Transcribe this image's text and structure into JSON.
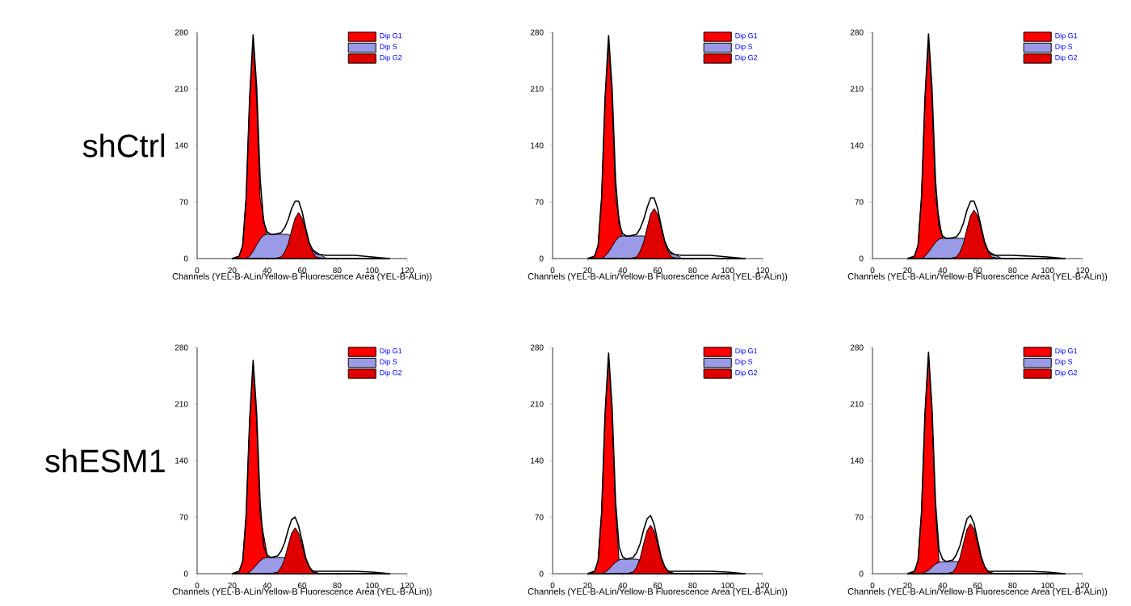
{
  "chart_data": [
    {
      "type": "area",
      "annotations": [
        "shCtrl"
      ],
      "xlabel": "Channels (YEL-B-ALin/Yellow-B Fluorescence Area (YEL-B-ALin))",
      "xlim": [
        0,
        120
      ],
      "xticks": [
        0,
        20,
        40,
        60,
        80,
        100,
        120
      ],
      "ylim": [
        0,
        280
      ],
      "yticks": [
        0,
        70,
        140,
        210,
        280
      ],
      "legend": "top right",
      "x": [
        20,
        24,
        26,
        28,
        30,
        32,
        34,
        36,
        38,
        40,
        42,
        44,
        46,
        48,
        50,
        52,
        54,
        56,
        58,
        60,
        62,
        64,
        66,
        68,
        70,
        74,
        80,
        90,
        100,
        110
      ],
      "series": [
        {
          "name": "Dip G1",
          "color": "#ff0000",
          "values": [
            0,
            3,
            16,
            75,
            196,
            268,
            196,
            75,
            null,
            null,
            0,
            0,
            0,
            0,
            0,
            0,
            0,
            0,
            0,
            0,
            0,
            0,
            0,
            0,
            0,
            0,
            0,
            0,
            0,
            0
          ]
        },
        {
          "name": "Dip S",
          "color": "#9a9ae6",
          "values": [
            0,
            0,
            0,
            0,
            3,
            9,
            17,
            24,
            29,
            30,
            30,
            30,
            30,
            30,
            30,
            30,
            null,
            null,
            null,
            null,
            null,
            null,
            null,
            null,
            null,
            0,
            0,
            0,
            0,
            0
          ]
        },
        {
          "name": "Dip G2",
          "color": "#e00000",
          "values": [
            0,
            0,
            0,
            0,
            0,
            0,
            0,
            0,
            0,
            0,
            0,
            0,
            1,
            2,
            8,
            18,
            35,
            50,
            57,
            50,
            35,
            18,
            8,
            2,
            1,
            0,
            0,
            0,
            0,
            0
          ]
        },
        {
          "type": "line",
          "color": "#000000",
          "values": [
            0,
            3,
            16,
            75,
            199,
            277,
            213,
            99,
            45,
            33,
            30,
            30,
            31,
            32,
            38,
            48,
            62,
            71,
            71,
            58,
            38,
            20,
            11,
            6,
            5,
            4,
            4,
            4,
            2,
            0
          ]
        }
      ]
    },
    {
      "type": "area",
      "xlabel": "Channels (YEL-B-ALin/Yellow-B Fluorescence Area (YEL-B-ALin))",
      "xlim": [
        0,
        120
      ],
      "xticks": [
        0,
        20,
        40,
        60,
        80,
        100,
        120
      ],
      "ylim": [
        0,
        280
      ],
      "yticks": [
        0,
        70,
        140,
        210,
        280
      ],
      "legend": "top right",
      "x": [
        20,
        24,
        26,
        28,
        30,
        32,
        34,
        36,
        38,
        40,
        42,
        44,
        46,
        48,
        50,
        52,
        54,
        56,
        58,
        60,
        62,
        64,
        66,
        68,
        70,
        74,
        80,
        90,
        100,
        110
      ],
      "series": [
        {
          "name": "Dip G1",
          "color": "#ff0000",
          "values": [
            0,
            3,
            16,
            75,
            196,
            268,
            196,
            75,
            null,
            null,
            0,
            0,
            0,
            0,
            0,
            0,
            0,
            0,
            0,
            0,
            0,
            0,
            0,
            0,
            0,
            0,
            0,
            0,
            0,
            0
          ]
        },
        {
          "name": "Dip S",
          "color": "#9a9ae6",
          "values": [
            0,
            0,
            0,
            0,
            3,
            8,
            15,
            22,
            27,
            28,
            28,
            28,
            28,
            28,
            28,
            28,
            null,
            null,
            null,
            null,
            null,
            null,
            null,
            null,
            null,
            0,
            0,
            0,
            0,
            0
          ]
        },
        {
          "name": "Dip G2",
          "color": "#e00000",
          "values": [
            0,
            0,
            0,
            0,
            0,
            0,
            0,
            0,
            0,
            0,
            0,
            0,
            1,
            2,
            9,
            20,
            38,
            55,
            62,
            55,
            38,
            20,
            9,
            2,
            1,
            0,
            0,
            0,
            0,
            0
          ]
        },
        {
          "type": "line",
          "color": "#000000",
          "values": [
            0,
            3,
            16,
            75,
            199,
            276,
            211,
            97,
            43,
            31,
            28,
            28,
            29,
            30,
            37,
            48,
            63,
            75,
            75,
            62,
            41,
            22,
            12,
            6,
            5,
            4,
            4,
            4,
            2,
            0
          ]
        }
      ]
    },
    {
      "type": "area",
      "xlabel": "Channels (YEL-B-ALin/Yellow-B Fluorescence Area (YEL-B-ALin))",
      "xlim": [
        0,
        120
      ],
      "xticks": [
        0,
        20,
        40,
        60,
        80,
        100,
        120
      ],
      "ylim": [
        0,
        280
      ],
      "yticks": [
        0,
        70,
        140,
        210,
        280
      ],
      "legend": "top right",
      "x": [
        20,
        24,
        26,
        28,
        30,
        32,
        34,
        36,
        38,
        40,
        42,
        44,
        46,
        48,
        50,
        52,
        54,
        56,
        58,
        60,
        62,
        64,
        66,
        68,
        70,
        74,
        80,
        90,
        100,
        110
      ],
      "series": [
        {
          "name": "Dip G1",
          "color": "#ff0000",
          "values": [
            0,
            3,
            16,
            76,
            197,
            270,
            197,
            76,
            null,
            null,
            0,
            0,
            0,
            0,
            0,
            0,
            0,
            0,
            0,
            0,
            0,
            0,
            0,
            0,
            0,
            0,
            0,
            0,
            0,
            0
          ]
        },
        {
          "name": "Dip S",
          "color": "#9a9ae6",
          "values": [
            0,
            0,
            0,
            0,
            3,
            8,
            14,
            20,
            24,
            25,
            25,
            25,
            25,
            25,
            25,
            25,
            null,
            null,
            null,
            null,
            null,
            null,
            null,
            null,
            null,
            0,
            0,
            0,
            0,
            0
          ]
        },
        {
          "name": "Dip G2",
          "color": "#e00000",
          "values": [
            0,
            0,
            0,
            0,
            0,
            0,
            0,
            0,
            0,
            0,
            0,
            0,
            1,
            2,
            8,
            19,
            37,
            53,
            60,
            53,
            37,
            19,
            8,
            2,
            1,
            0,
            0,
            0,
            0,
            0
          ]
        },
        {
          "type": "line",
          "color": "#000000",
          "values": [
            0,
            3,
            16,
            76,
            200,
            278,
            211,
            96,
            40,
            28,
            25,
            25,
            26,
            27,
            33,
            44,
            60,
            71,
            71,
            59,
            40,
            21,
            10,
            5,
            4,
            4,
            4,
            3,
            2,
            0
          ]
        }
      ]
    },
    {
      "type": "area",
      "annotations": [
        "shESM1"
      ],
      "xlabel": "Channels (YEL-B-ALin/Yellow-B Fluorescence Area (YEL-B-ALin))",
      "xlim": [
        0,
        120
      ],
      "xticks": [
        0,
        20,
        40,
        60,
        80,
        100,
        120
      ],
      "ylim": [
        0,
        280
      ],
      "yticks": [
        0,
        70,
        140,
        210,
        280
      ],
      "legend": "top right",
      "x": [
        20,
        24,
        26,
        28,
        30,
        32,
        34,
        36,
        38,
        40,
        42,
        44,
        46,
        48,
        50,
        52,
        54,
        56,
        58,
        60,
        62,
        64,
        66,
        68,
        70,
        74,
        80,
        90,
        100,
        110
      ],
      "series": [
        {
          "name": "Dip G1",
          "color": "#ff0000",
          "values": [
            0,
            3,
            15,
            72,
            188,
            258,
            188,
            72,
            null,
            null,
            0,
            0,
            0,
            0,
            0,
            0,
            0,
            0,
            0,
            0,
            0,
            0,
            0,
            0,
            0,
            0,
            0,
            0,
            0,
            0
          ]
        },
        {
          "name": "Dip S",
          "color": "#9a9ae6",
          "values": [
            0,
            0,
            0,
            0,
            2,
            6,
            11,
            16,
            19,
            20,
            20,
            20,
            20,
            20,
            20,
            null,
            null,
            null,
            null,
            null,
            null,
            null,
            null,
            null,
            0,
            0,
            0,
            0,
            0,
            0
          ]
        },
        {
          "name": "Dip G2",
          "color": "#e00000",
          "values": [
            0,
            0,
            0,
            0,
            0,
            0,
            0,
            0,
            0,
            0,
            0,
            1,
            2,
            8,
            18,
            35,
            50,
            57,
            50,
            35,
            18,
            8,
            2,
            1,
            0,
            0,
            0,
            0,
            0,
            0
          ]
        },
        {
          "type": "line",
          "color": "#000000",
          "values": [
            0,
            3,
            15,
            72,
            190,
            264,
            199,
            88,
            34,
            23,
            20,
            21,
            22,
            28,
            38,
            54,
            67,
            70,
            59,
            40,
            20,
            9,
            3,
            3,
            3,
            3,
            3,
            3,
            2,
            0
          ]
        }
      ]
    },
    {
      "type": "area",
      "xlabel": "Channels (YEL-B-ALin/Yellow-B Fluorescence Area (YEL-B-ALin))",
      "xlim": [
        0,
        120
      ],
      "xticks": [
        0,
        20,
        40,
        60,
        80,
        100,
        120
      ],
      "ylim": [
        0,
        280
      ],
      "yticks": [
        0,
        70,
        140,
        210,
        280
      ],
      "legend": "top right",
      "x": [
        20,
        24,
        26,
        28,
        30,
        32,
        34,
        36,
        38,
        40,
        42,
        44,
        46,
        48,
        50,
        52,
        54,
        56,
        58,
        60,
        62,
        64,
        66,
        68,
        70,
        74,
        80,
        90,
        100,
        110
      ],
      "series": [
        {
          "name": "Dip G1",
          "color": "#ff0000",
          "values": [
            0,
            3,
            16,
            75,
            196,
            268,
            196,
            75,
            16,
            null,
            0,
            0,
            0,
            0,
            0,
            0,
            0,
            0,
            0,
            0,
            0,
            0,
            0,
            0,
            0,
            0,
            0,
            0,
            0,
            0
          ]
        },
        {
          "name": "Dip S",
          "color": "#9a9ae6",
          "values": [
            0,
            0,
            0,
            0,
            2,
            5,
            10,
            14,
            17,
            18,
            18,
            18,
            18,
            18,
            null,
            null,
            null,
            null,
            null,
            null,
            null,
            null,
            null,
            null,
            0,
            0,
            0,
            0,
            0,
            0
          ]
        },
        {
          "name": "Dip G2",
          "color": "#e00000",
          "values": [
            0,
            0,
            0,
            0,
            0,
            0,
            0,
            0,
            0,
            0,
            0,
            1,
            2,
            8,
            19,
            37,
            53,
            60,
            53,
            37,
            19,
            8,
            2,
            1,
            0,
            0,
            0,
            0,
            0,
            0
          ]
        },
        {
          "type": "line",
          "color": "#000000",
          "values": [
            0,
            3,
            16,
            75,
            198,
            273,
            206,
            89,
            33,
            21,
            18,
            19,
            20,
            26,
            37,
            54,
            68,
            72,
            61,
            41,
            21,
            9,
            3,
            3,
            3,
            3,
            3,
            3,
            2,
            0
          ]
        }
      ]
    },
    {
      "type": "area",
      "xlabel": "Channels (YEL-B-ALin/Yellow-B Fluorescence Area (YEL-B-ALin))",
      "xlim": [
        0,
        120
      ],
      "xticks": [
        0,
        20,
        40,
        60,
        80,
        100,
        120
      ],
      "ylim": [
        0,
        280
      ],
      "yticks": [
        0,
        70,
        140,
        210,
        280
      ],
      "legend": "top right",
      "x": [
        20,
        24,
        26,
        28,
        30,
        32,
        34,
        36,
        38,
        40,
        42,
        44,
        46,
        48,
        50,
        52,
        54,
        56,
        58,
        60,
        62,
        64,
        66,
        68,
        70,
        74,
        80,
        90,
        100,
        110
      ],
      "series": [
        {
          "name": "Dip G1",
          "color": "#ff0000",
          "values": [
            0,
            3,
            16,
            76,
            197,
            270,
            197,
            76,
            16,
            null,
            0,
            0,
            0,
            0,
            0,
            0,
            0,
            0,
            0,
            0,
            0,
            0,
            0,
            0,
            0,
            0,
            0,
            0,
            0,
            0
          ]
        },
        {
          "name": "Dip S",
          "color": "#9a9ae6",
          "values": [
            0,
            0,
            0,
            0,
            2,
            4,
            8,
            12,
            14,
            15,
            15,
            15,
            15,
            15,
            null,
            null,
            null,
            null,
            null,
            null,
            null,
            null,
            null,
            null,
            0,
            0,
            0,
            0,
            0,
            0
          ]
        },
        {
          "name": "Dip G2",
          "color": "#e00000",
          "values": [
            0,
            0,
            0,
            0,
            0,
            0,
            0,
            0,
            0,
            0,
            0,
            1,
            2,
            9,
            20,
            38,
            55,
            62,
            55,
            38,
            20,
            9,
            2,
            1,
            0,
            0,
            0,
            0,
            0,
            0
          ]
        },
        {
          "type": "line",
          "color": "#000000",
          "values": [
            0,
            3,
            16,
            76,
            199,
            274,
            205,
            88,
            30,
            18,
            15,
            16,
            17,
            24,
            35,
            52,
            68,
            72,
            62,
            42,
            22,
            9,
            3,
            3,
            3,
            3,
            3,
            3,
            2,
            0
          ]
        }
      ]
    }
  ]
}
